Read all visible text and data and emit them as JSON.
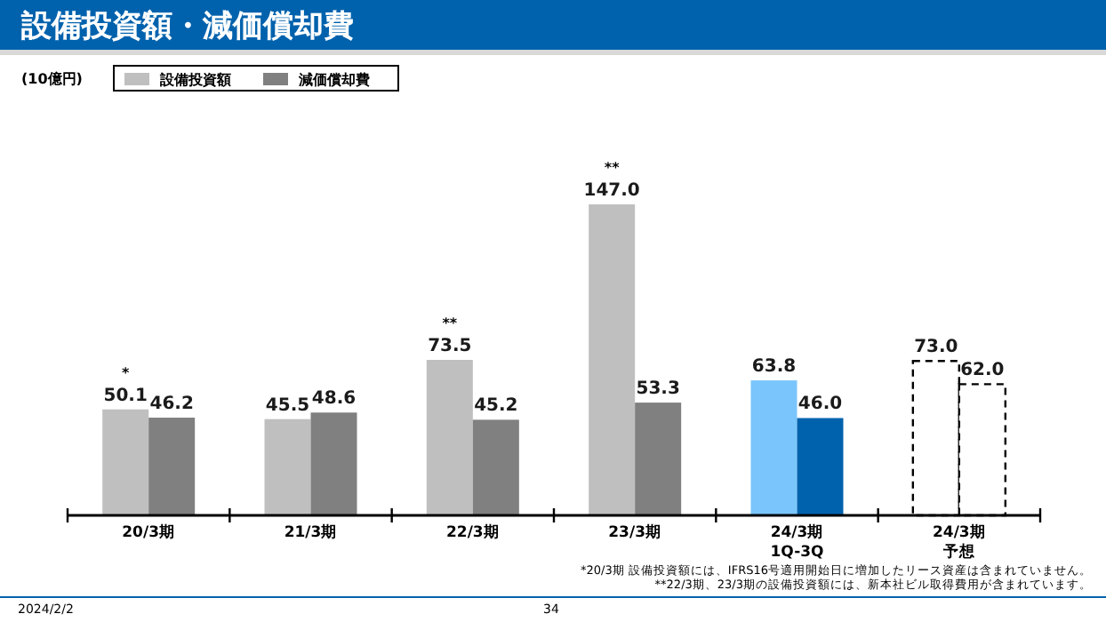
{
  "chart_data": {
    "type": "bar",
    "title": "設備投資額・減価償却費",
    "categories": [
      "20/3期",
      "21/3期",
      "22/3期",
      "23/3期",
      "24/3期1Q-3Q",
      "24/3期予想"
    ],
    "series": [
      {
        "name": "設備投資額",
        "color": "#bfbfbf",
        "values": [
          50.1,
          45.5,
          73.5,
          147.0,
          63.8,
          73.0
        ],
        "value_labels": [
          "50.1",
          "45.5",
          "73.5",
          "147.0",
          "63.8",
          "73.0"
        ],
        "colors": [
          "#bfbfbf",
          "#bfbfbf",
          "#bfbfbf",
          "#bfbfbf",
          "#7ac5fc",
          "#ffffff"
        ]
      },
      {
        "name": "減価償却費",
        "color": "#808080",
        "values": [
          46.2,
          48.6,
          45.2,
          53.3,
          46.0,
          62.0
        ],
        "value_labels": [
          "46.2",
          "48.6",
          "45.2",
          "53.3",
          "46.0",
          "62.0"
        ],
        "colors": [
          "#808080",
          "#808080",
          "#808080",
          "#808080",
          "#0062ad",
          "#ffffff"
        ]
      }
    ],
    "legend": "top left",
    "annotations": [
      {
        "text": "*",
        "x": "20/3期",
        "y": 50.1
      },
      {
        "text": "**",
        "x": "22/3期",
        "y": 73.5
      },
      {
        "text": "**",
        "x": "23/3期",
        "y": 147.0
      },
      "(10億円)",
      "*20/3期 設備投資額には、IFRS16号適用開始日に増加したリース資産は含まれていません。",
      "**22/3期、23/3期の設備投資額には、新本社ビル取得費用が含まれています。",
      "2024/2/2",
      "34"
    ]
  }
}
